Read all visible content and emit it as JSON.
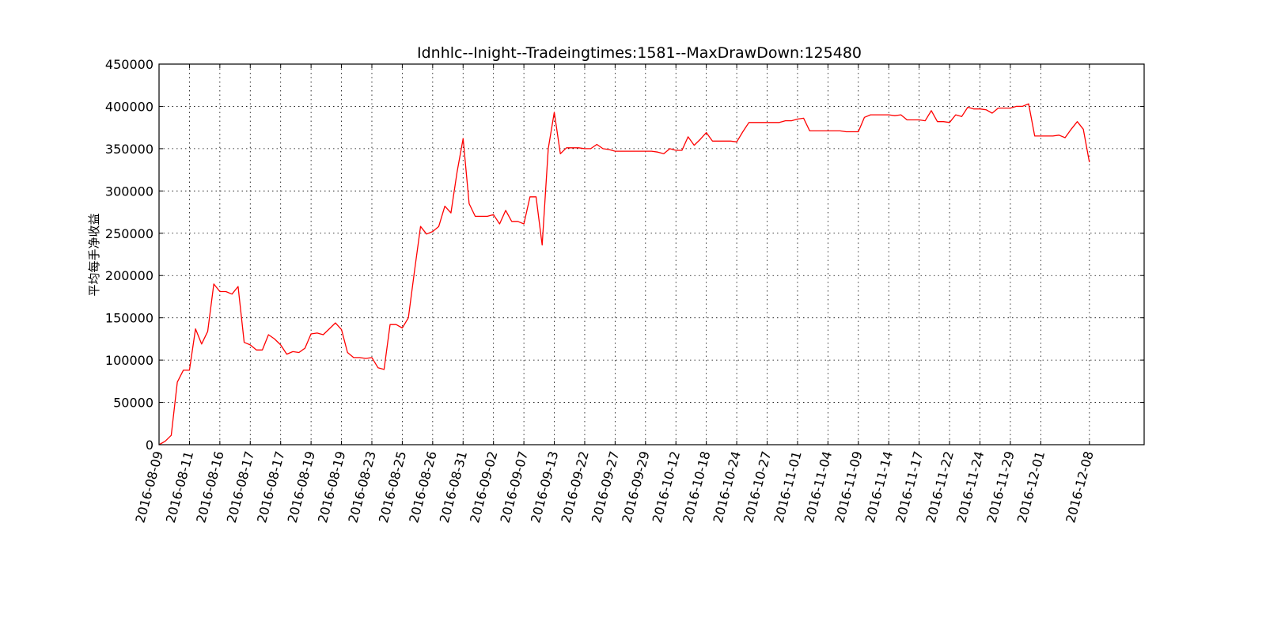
{
  "chart_data": {
    "type": "line",
    "title": "Idnhlc--Inight--Tradeingtimes:1581--MaxDrawDown:125480",
    "xlabel": "",
    "ylabel": "平均每手净收益",
    "ylim": [
      0,
      450000
    ],
    "yticks": [
      0,
      50000,
      100000,
      150000,
      200000,
      250000,
      300000,
      350000,
      400000,
      450000
    ],
    "xlim": [
      0,
      162
    ],
    "xticks": [
      {
        "x": 0,
        "label": "2016-08-09"
      },
      {
        "x": 5,
        "label": "2016-08-11"
      },
      {
        "x": 10,
        "label": "2016-08-16"
      },
      {
        "x": 15,
        "label": "2016-08-17"
      },
      {
        "x": 20,
        "label": "2016-08-17"
      },
      {
        "x": 25,
        "label": "2016-08-19"
      },
      {
        "x": 30,
        "label": "2016-08-19"
      },
      {
        "x": 35,
        "label": "2016-08-23"
      },
      {
        "x": 40,
        "label": "2016-08-25"
      },
      {
        "x": 45,
        "label": "2016-08-26"
      },
      {
        "x": 50,
        "label": "2016-08-31"
      },
      {
        "x": 55,
        "label": "2016-09-02"
      },
      {
        "x": 60,
        "label": "2016-09-07"
      },
      {
        "x": 65,
        "label": "2016-09-13"
      },
      {
        "x": 70,
        "label": "2016-09-22"
      },
      {
        "x": 75,
        "label": "2016-09-27"
      },
      {
        "x": 80,
        "label": "2016-09-29"
      },
      {
        "x": 85,
        "label": "2016-10-12"
      },
      {
        "x": 90,
        "label": "2016-10-18"
      },
      {
        "x": 95,
        "label": "2016-10-24"
      },
      {
        "x": 100,
        "label": "2016-10-27"
      },
      {
        "x": 105,
        "label": "2016-11-01"
      },
      {
        "x": 110,
        "label": "2016-11-04"
      },
      {
        "x": 115,
        "label": "2016-11-09"
      },
      {
        "x": 120,
        "label": "2016-11-14"
      },
      {
        "x": 125,
        "label": "2016-11-17"
      },
      {
        "x": 130,
        "label": "2016-11-22"
      },
      {
        "x": 135,
        "label": "2016-11-24"
      },
      {
        "x": 140,
        "label": "2016-11-29"
      },
      {
        "x": 145,
        "label": "2016-12-01"
      },
      {
        "x": 153,
        "label": "2016-12-08"
      }
    ],
    "grid": true,
    "series": [
      {
        "color": "#ff0000",
        "x": [
          0,
          1,
          2,
          3,
          4,
          5,
          6,
          7,
          8,
          9,
          10,
          11,
          12,
          13,
          14,
          15,
          16,
          17,
          18,
          19,
          20,
          21,
          22,
          23,
          24,
          25,
          26,
          27,
          28,
          29,
          30,
          31,
          32,
          33,
          34,
          35,
          36,
          37,
          38,
          39,
          40,
          41,
          42,
          43,
          44,
          45,
          46,
          47,
          48,
          49,
          50,
          51,
          52,
          53,
          54,
          55,
          56,
          57,
          58,
          59,
          60,
          61,
          62,
          63,
          64,
          65,
          66,
          67,
          68,
          69,
          70,
          71,
          72,
          73,
          74,
          75,
          76,
          77,
          78,
          79,
          80,
          81,
          82,
          83,
          84,
          85,
          86,
          87,
          88,
          89,
          90,
          91,
          92,
          93,
          94,
          95,
          96,
          97,
          98,
          99,
          100,
          101,
          102,
          103,
          104,
          105,
          106,
          107,
          108,
          109,
          110,
          111,
          112,
          113,
          114,
          115,
          116,
          117,
          118,
          119,
          120,
          121,
          122,
          123,
          124,
          125,
          126,
          127,
          128,
          129,
          130,
          131,
          132,
          133,
          134,
          135,
          136,
          137,
          138,
          139,
          140,
          141,
          142,
          143,
          144,
          145,
          146,
          147,
          148,
          149,
          150,
          151,
          152,
          153
        ],
        "values": [
          0,
          4000,
          11000,
          74000,
          88000,
          88000,
          137000,
          119000,
          134000,
          190000,
          181000,
          181000,
          178000,
          187000,
          121000,
          118000,
          112000,
          112000,
          130000,
          125000,
          118000,
          107000,
          110000,
          109000,
          114000,
          131000,
          132000,
          130000,
          137000,
          144000,
          136000,
          109000,
          103000,
          103000,
          102000,
          103000,
          91000,
          89000,
          142000,
          142000,
          138000,
          150000,
          205000,
          258000,
          249000,
          252000,
          258000,
          282000,
          274000,
          322000,
          362000,
          285000,
          270000,
          270000,
          270000,
          272000,
          261000,
          277000,
          264000,
          264000,
          261000,
          293000,
          293000,
          236000,
          350000,
          393000,
          344000,
          351000,
          351000,
          351000,
          350000,
          350000,
          355000,
          350000,
          349000,
          347000,
          347000,
          347000,
          347000,
          347000,
          347000,
          347000,
          346000,
          344000,
          350000,
          348000,
          348000,
          364000,
          354000,
          361000,
          369000,
          359000,
          359000,
          359000,
          359000,
          358000,
          370000,
          381000,
          381000,
          381000,
          381000,
          381000,
          381000,
          383000,
          383000,
          385000,
          386000,
          371000,
          371000,
          371000,
          371000,
          371000,
          371000,
          370000,
          370000,
          370000,
          387000,
          390000,
          390000,
          390000,
          390000,
          389000,
          390000,
          384000,
          384000,
          384000,
          383000,
          395000,
          382000,
          382000,
          381000,
          390000,
          388000,
          399000,
          397000,
          397000,
          396000,
          392000,
          398000,
          398000,
          398000,
          400000,
          400000,
          403000,
          365000,
          365000,
          365000,
          365000,
          366000,
          363000,
          373000,
          382000,
          373000,
          334000
        ]
      }
    ]
  }
}
